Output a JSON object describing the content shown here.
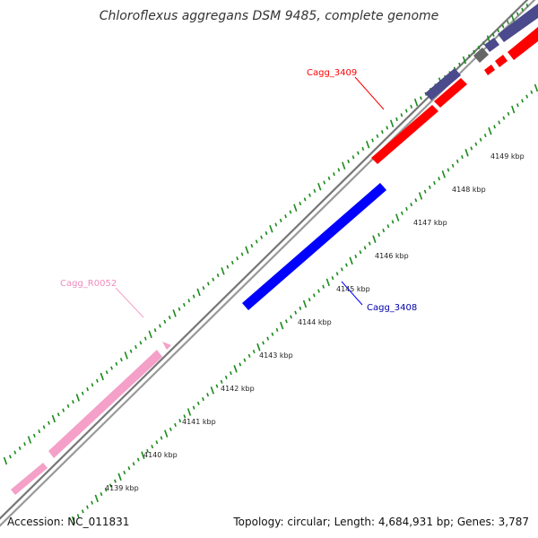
{
  "title": "Chloroflexus aggregans DSM 9485, complete genome",
  "footer": {
    "accession": "Accession: NC_011831",
    "summary": "Topology: circular; Length: 4,684,931 bp; Genes: 3,787"
  },
  "colors": {
    "forward_cds": "#ff0000",
    "reverse_cds": "#0000ff",
    "rna": "#f4a0c8",
    "other_feature": "#4a4a8c",
    "gray_feature": "#666666",
    "ticks": "#1a8a1a",
    "backbone": "#777777"
  },
  "tick_labels": [
    "4139 kbp",
    "4140 kbp",
    "4141 kbp",
    "4142 kbp",
    "4143 kbp",
    "4144 kbp",
    "4145 kbp",
    "4146 kbp",
    "4147 kbp",
    "4148 kbp",
    "4149 kbp"
  ],
  "gene_labels": {
    "forward": "Cagg_3409",
    "reverse": "Cagg_3408",
    "rna": "Cagg_R0052"
  }
}
